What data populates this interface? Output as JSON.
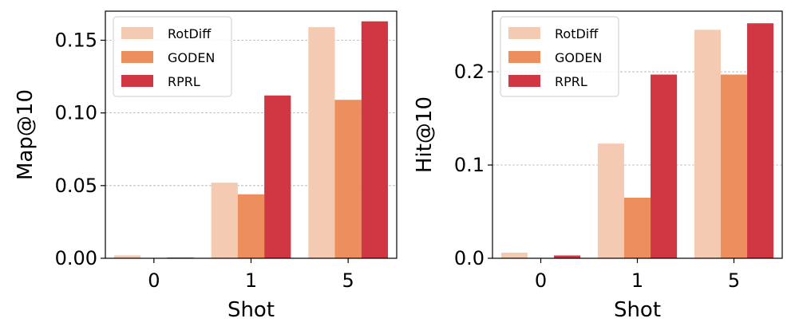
{
  "chart_data": [
    {
      "type": "bar",
      "panel": "left",
      "title": "",
      "xlabel": "Shot",
      "ylabel": "Map@10",
      "categories": [
        "0",
        "1",
        "5"
      ],
      "series": [
        {
          "name": "RotDiff",
          "color": "#f4cbb2",
          "values": [
            0.002,
            0.052,
            0.159
          ]
        },
        {
          "name": "GODEN",
          "color": "#ec8e5e",
          "values": [
            0.0,
            0.044,
            0.109
          ]
        },
        {
          "name": "RPRL",
          "color": "#d13643",
          "values": [
            0.0005,
            0.112,
            0.163
          ]
        }
      ],
      "ylim": [
        0,
        0.17
      ],
      "yticks": [
        0.0,
        0.05,
        0.1,
        0.15
      ],
      "ytick_labels": [
        "0.00",
        "0.05",
        "0.10",
        "0.15"
      ],
      "grid": true,
      "legend_position": "top-left"
    },
    {
      "type": "bar",
      "panel": "right",
      "title": "",
      "xlabel": "Shot",
      "ylabel": "Hit@10",
      "categories": [
        "0",
        "1",
        "5"
      ],
      "series": [
        {
          "name": "RotDiff",
          "color": "#f4cbb2",
          "values": [
            0.006,
            0.123,
            0.245
          ]
        },
        {
          "name": "GODEN",
          "color": "#ec8e5e",
          "values": [
            0.0,
            0.065,
            0.197
          ]
        },
        {
          "name": "RPRL",
          "color": "#d13643",
          "values": [
            0.003,
            0.197,
            0.252
          ]
        }
      ],
      "ylim": [
        0,
        0.265
      ],
      "yticks": [
        0.0,
        0.1,
        0.2
      ],
      "ytick_labels": [
        "0.0",
        "0.1",
        "0.2"
      ],
      "grid": true,
      "legend_position": "top-left"
    }
  ]
}
